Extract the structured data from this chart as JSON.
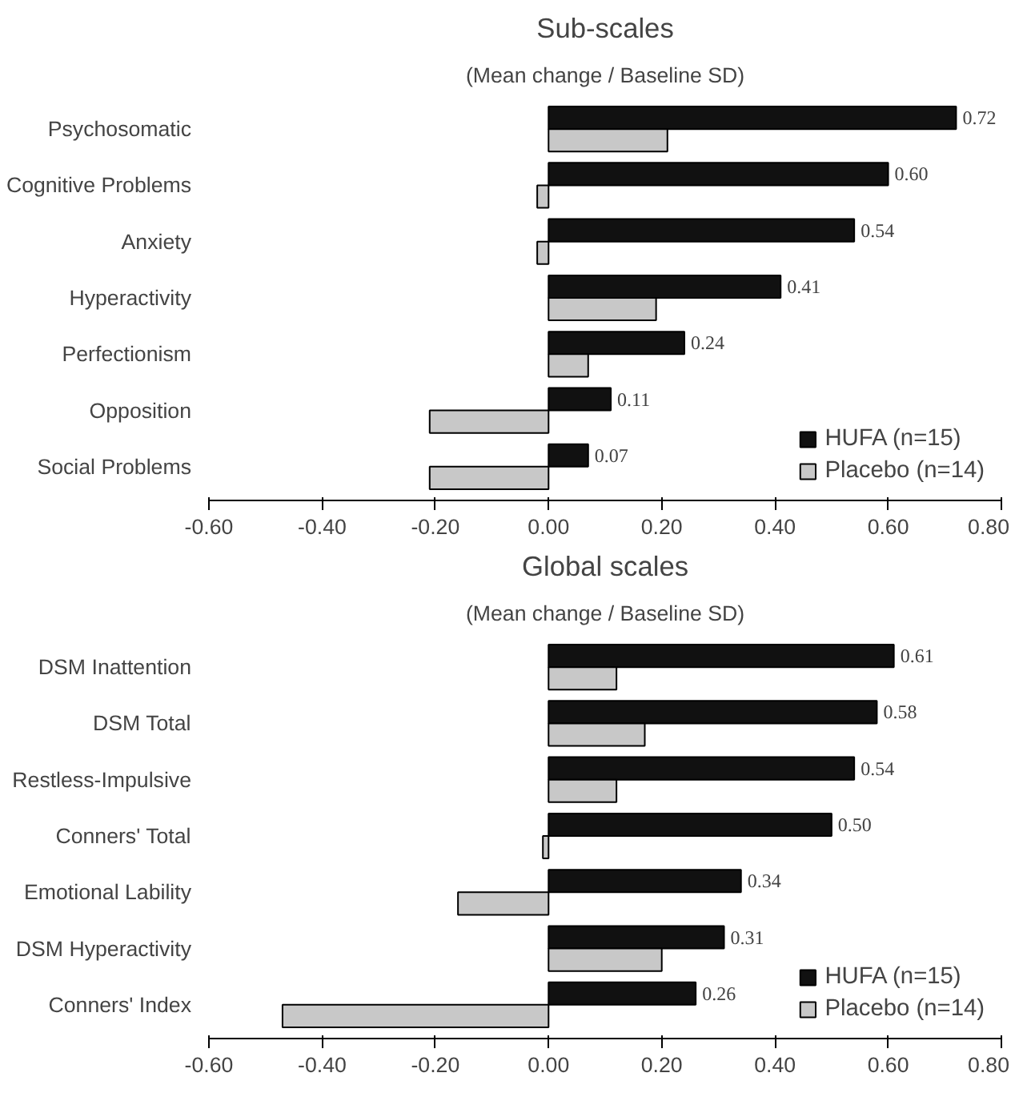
{
  "chart_data": [
    {
      "type": "bar",
      "orientation": "horizontal",
      "title": "Sub-scales",
      "subtitle": "(Mean change / Baseline SD)",
      "categories": [
        "Psychosomatic",
        "Cognitive Problems",
        "Anxiety",
        "Hyperactivity",
        "Perfectionism",
        "Opposition",
        "Social Problems"
      ],
      "series": [
        {
          "name": "HUFA (n=15)",
          "color": "#111111",
          "values": [
            0.72,
            0.6,
            0.54,
            0.41,
            0.24,
            0.11,
            0.07
          ],
          "value_labels": [
            "0.72",
            "0.60",
            "0.54",
            "0.41",
            "0.24",
            "0.11",
            "0.07"
          ]
        },
        {
          "name": "Placebo (n=14)",
          "color": "#c8c8c8",
          "values": [
            0.21,
            -0.02,
            -0.02,
            0.19,
            0.07,
            -0.21,
            -0.21
          ]
        }
      ],
      "xlim": [
        -0.6,
        0.8
      ],
      "xticks": [
        {
          "value": -0.6,
          "label": "-0.60"
        },
        {
          "value": -0.4,
          "label": "-0.40"
        },
        {
          "value": -0.2,
          "label": "-0.20"
        },
        {
          "value": 0,
          "label": "0.00"
        },
        {
          "value": 0.2,
          "label": "0.20"
        },
        {
          "value": 0.4,
          "label": "0.40"
        },
        {
          "value": 0.6,
          "label": "0.60"
        },
        {
          "value": 0.8,
          "label": "0.80"
        }
      ],
      "legend": "bottom right",
      "grid": false
    },
    {
      "type": "bar",
      "orientation": "horizontal",
      "title": "Global scales",
      "subtitle": "(Mean change / Baseline SD)",
      "categories": [
        "DSM Inattention",
        "DSM Total",
        "Restless-Impulsive",
        "Conners' Total",
        "Emotional Lability",
        "DSM Hyperactivity",
        "Conners' Index"
      ],
      "series": [
        {
          "name": "HUFA (n=15)",
          "color": "#111111",
          "values": [
            0.61,
            0.58,
            0.54,
            0.5,
            0.34,
            0.31,
            0.26
          ],
          "value_labels": [
            "0.61",
            "0.58",
            "0.54",
            "0.50",
            "0.34",
            "0.31",
            "0.26"
          ]
        },
        {
          "name": "Placebo (n=14)",
          "color": "#c8c8c8",
          "values": [
            0.12,
            0.17,
            0.12,
            -0.01,
            -0.16,
            0.2,
            -0.47
          ]
        }
      ],
      "xlim": [
        -0.6,
        0.8
      ],
      "xticks": [
        {
          "value": -0.6,
          "label": "-0.60"
        },
        {
          "value": -0.4,
          "label": "-0.40"
        },
        {
          "value": -0.2,
          "label": "-0.20"
        },
        {
          "value": 0,
          "label": "0.00"
        },
        {
          "value": 0.2,
          "label": "0.20"
        },
        {
          "value": 0.4,
          "label": "0.40"
        },
        {
          "value": 0.6,
          "label": "0.60"
        },
        {
          "value": 0.8,
          "label": "0.80"
        }
      ],
      "legend": "bottom right",
      "grid": false
    }
  ]
}
